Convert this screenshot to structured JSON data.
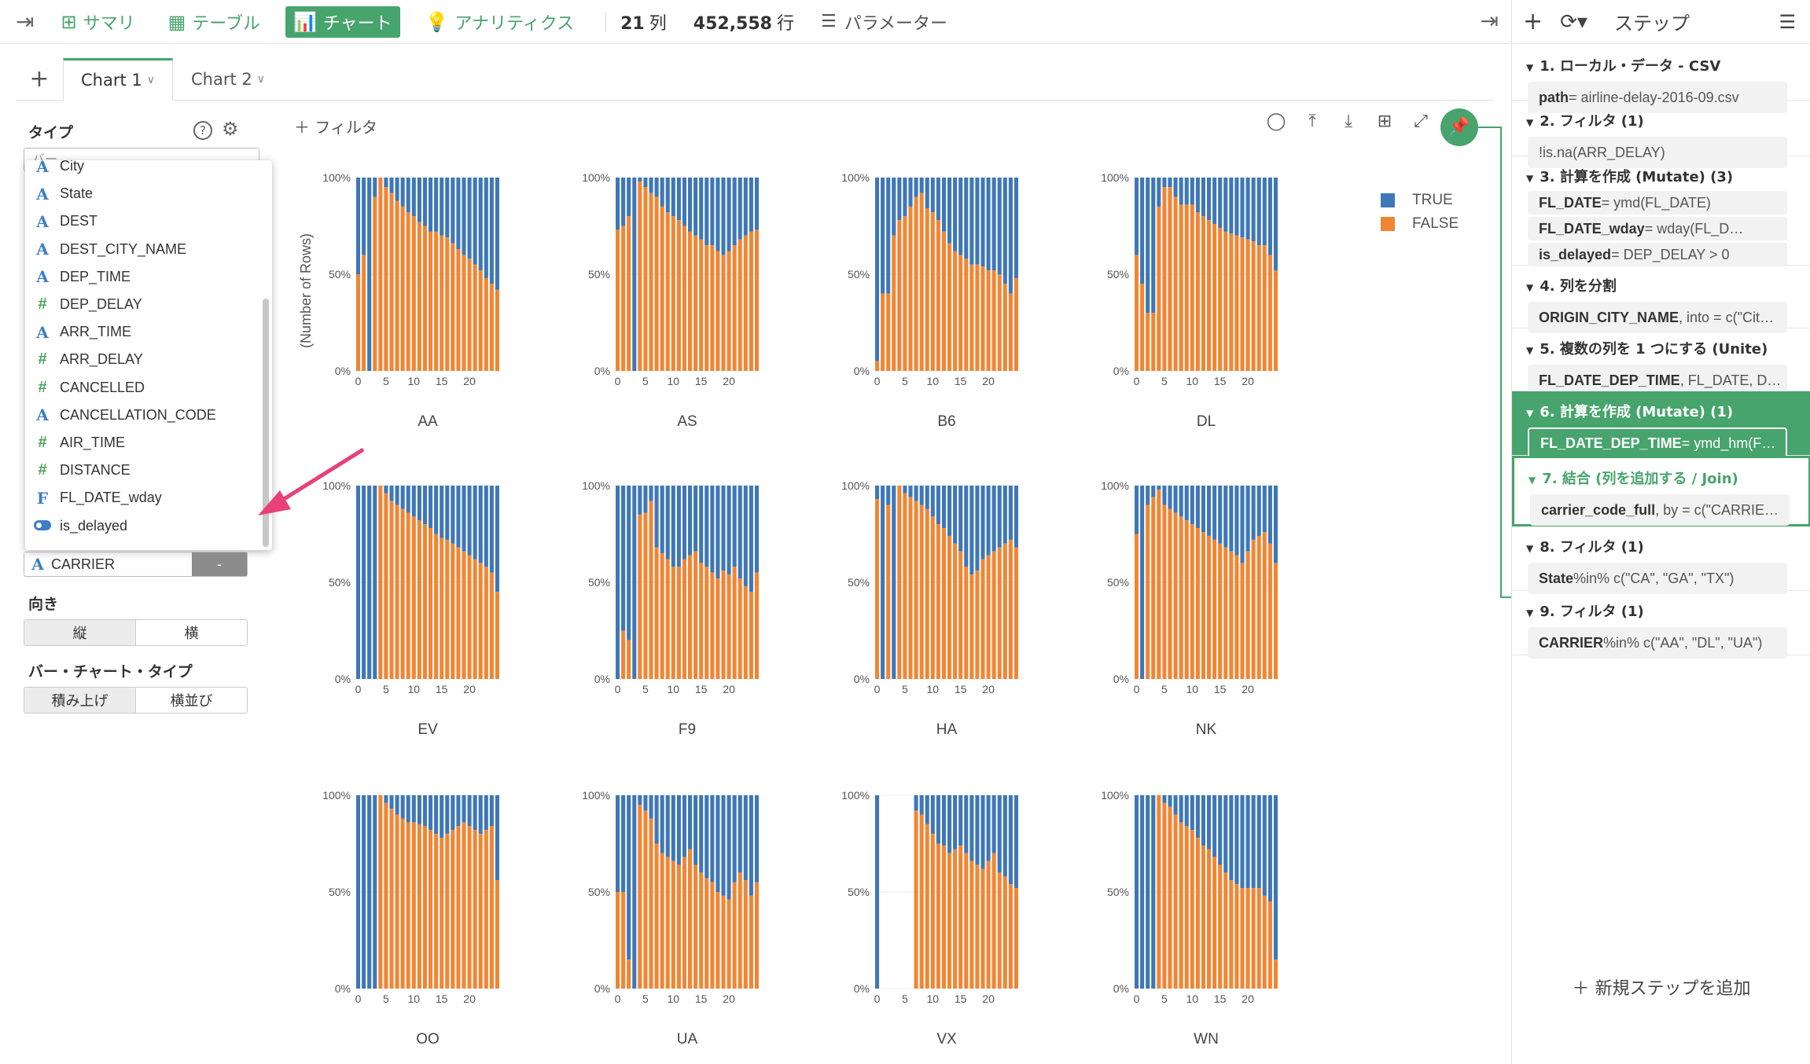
{
  "toolbar": {
    "summary": "サマリ",
    "table": "テーブル",
    "chart": "チャート",
    "analytics": "アナリティクス",
    "columns_count": "21",
    "columns_unit": "列",
    "rows_count": "452,558",
    "rows_unit": "行",
    "parameter": "パラメーター"
  },
  "tabs": [
    "Chart 1",
    "Chart 2"
  ],
  "left_panel": {
    "type_label": "タイプ",
    "type_value": "バー",
    "dropdown_items": [
      {
        "icon": "A",
        "kind": "str",
        "label": "City"
      },
      {
        "icon": "A",
        "kind": "str",
        "label": "State"
      },
      {
        "icon": "A",
        "kind": "str",
        "label": "DEST"
      },
      {
        "icon": "A",
        "kind": "str",
        "label": "DEST_CITY_NAME"
      },
      {
        "icon": "A",
        "kind": "str",
        "label": "DEP_TIME"
      },
      {
        "icon": "#",
        "kind": "num",
        "label": "DEP_DELAY"
      },
      {
        "icon": "A",
        "kind": "str",
        "label": "ARR_TIME"
      },
      {
        "icon": "#",
        "kind": "num",
        "label": "ARR_DELAY"
      },
      {
        "icon": "#",
        "kind": "num",
        "label": "CANCELLED"
      },
      {
        "icon": "A",
        "kind": "str",
        "label": "CANCELLATION_CODE"
      },
      {
        "icon": "#",
        "kind": "num",
        "label": "AIR_TIME"
      },
      {
        "icon": "#",
        "kind": "num",
        "label": "DISTANCE"
      },
      {
        "icon": "F",
        "kind": "fac",
        "label": "FL_DATE_wday"
      },
      {
        "icon": "toggle",
        "kind": "lgl",
        "label": "is_delayed"
      }
    ],
    "carrier_icon": "A",
    "carrier_field": "CARRIER",
    "carrier_minus": "-",
    "orientation_label": "向き",
    "orientation_options": [
      "縦",
      "横"
    ],
    "bar_type_label": "バー・チャート・タイプ",
    "bar_type_options": [
      "積み上げ",
      "横並び"
    ]
  },
  "chart_area": {
    "filter_label": "フィルタ"
  },
  "chart_data": {
    "type": "bar",
    "stacked": true,
    "ylabel": "(Number of Rows)",
    "yticks": [
      "0%",
      "50%",
      "100%"
    ],
    "xticks": [
      0,
      5,
      10,
      15,
      20
    ],
    "legend": [
      {
        "name": "TRUE",
        "color": "#3e77b6"
      },
      {
        "name": "FALSE",
        "color": "#f08634"
      }
    ],
    "legend_position": "right",
    "facets": [
      {
        "name": "AA",
        "false_pct": [
          50,
          60,
          0,
          90,
          100,
          95,
          92,
          88,
          85,
          82,
          80,
          77,
          75,
          72,
          72,
          70,
          69,
          66,
          63,
          60,
          58,
          55,
          52,
          48,
          45,
          42
        ]
      },
      {
        "name": "AS",
        "false_pct": [
          73,
          75,
          80,
          0,
          98,
          95,
          92,
          90,
          85,
          82,
          80,
          78,
          75,
          72,
          70,
          68,
          65,
          65,
          62,
          60,
          62,
          65,
          68,
          70,
          72,
          73
        ]
      },
      {
        "name": "B6",
        "false_pct": [
          5,
          40,
          40,
          70,
          78,
          80,
          85,
          90,
          92,
          84,
          82,
          78,
          72,
          66,
          62,
          60,
          58,
          55,
          55,
          54,
          52,
          52,
          50,
          45,
          40,
          48
        ]
      },
      {
        "name": "DL",
        "false_pct": [
          60,
          45,
          30,
          30,
          85,
          95,
          95,
          90,
          86,
          86,
          86,
          82,
          80,
          78,
          76,
          74,
          72,
          71,
          70,
          69,
          68,
          67,
          65,
          65,
          60,
          52
        ]
      },
      {
        "name": "EV",
        "false_pct": [
          0,
          0,
          0,
          0,
          100,
          96,
          92,
          90,
          88,
          86,
          84,
          82,
          80,
          78,
          75,
          73,
          72,
          70,
          68,
          66,
          64,
          62,
          60,
          58,
          55,
          45
        ]
      },
      {
        "name": "F9",
        "false_pct": [
          0,
          25,
          20,
          0,
          85,
          86,
          92,
          68,
          65,
          62,
          58,
          58,
          62,
          64,
          66,
          60,
          58,
          55,
          52,
          56,
          54,
          58,
          52,
          48,
          45,
          55
        ]
      },
      {
        "name": "HA",
        "false_pct": [
          93,
          0,
          90,
          0,
          100,
          96,
          94,
          92,
          90,
          88,
          84,
          80,
          78,
          74,
          70,
          66,
          58,
          54,
          56,
          62,
          64,
          66,
          68,
          70,
          72,
          68
        ]
      },
      {
        "name": "NK",
        "false_pct": [
          75,
          0,
          90,
          94,
          98,
          90,
          88,
          86,
          84,
          82,
          80,
          78,
          76,
          74,
          72,
          70,
          68,
          66,
          64,
          60,
          66,
          72,
          74,
          76,
          70,
          60
        ]
      },
      {
        "name": "OO",
        "false_pct": [
          0,
          0,
          0,
          0,
          100,
          96,
          93,
          90,
          88,
          86,
          86,
          85,
          84,
          82,
          80,
          78,
          80,
          82,
          84,
          86,
          84,
          82,
          80,
          82,
          84,
          56
        ]
      },
      {
        "name": "UA",
        "false_pct": [
          50,
          50,
          15,
          0,
          95,
          92,
          88,
          75,
          70,
          68,
          66,
          64,
          68,
          72,
          64,
          60,
          57,
          55,
          50,
          48,
          46,
          55,
          60,
          56,
          48,
          55
        ]
      },
      {
        "name": "VX",
        "false_pct": [
          0,
          0,
          0,
          0,
          0,
          0,
          0,
          92,
          90,
          85,
          80,
          75,
          74,
          70,
          72,
          74,
          70,
          66,
          64,
          62,
          66,
          70,
          60,
          58,
          54,
          52
        ]
      },
      {
        "name": "WN",
        "false_pct": [
          0,
          0,
          0,
          0,
          100,
          96,
          94,
          90,
          86,
          84,
          82,
          78,
          74,
          72,
          68,
          64,
          60,
          56,
          54,
          52,
          52,
          52,
          52,
          48,
          45,
          15
        ]
      }
    ]
  },
  "right_panel": {
    "title": "ステップ",
    "add_step": "新規ステップを追加",
    "steps": [
      {
        "title": "1. ローカル・データ - CSV",
        "body_key": "path",
        "body_rest": " = airline-delay-2016-09.csv"
      },
      {
        "title": "2. フィルタ (1)",
        "body_key": "",
        "body_rest": "!is.na(ARR_DELAY)"
      },
      {
        "title": "3. 計算を作成 (Mutate) (3)",
        "body_key": "FL_DATE",
        "body_rest": " = ymd(FL_DATE)",
        "body2_key": "FL_DATE_wday",
        "body2_rest": " = wday(FL_D…",
        "body3_key": "is_delayed",
        "body3_rest": " = DEP_DELAY > 0"
      },
      {
        "title": "4. 列を分割",
        "body_key": "ORIGIN_CITY_NAME",
        "body_rest": ", into = c(\"Cit…"
      },
      {
        "title": "5. 複数の列を 1 つにする (Unite)",
        "body_key": "FL_DATE_DEP_TIME",
        "body_rest": ", FL_DATE, D…"
      },
      {
        "title": "6. 計算を作成 (Mutate) (1)",
        "body_key": "FL_DATE_DEP_TIME",
        "body_rest": " = ymd_hm(F…"
      },
      {
        "title": "7. 結合 (列を追加する / Join)",
        "body_key": "carrier_code_full",
        "body_rest": ", by = c(\"CARRIE…"
      },
      {
        "title": "8. フィルタ (1)",
        "body_key": "State",
        "body_rest": " %in% c(\"CA\", \"GA\", \"TX\")"
      },
      {
        "title": "9. フィルタ (1)",
        "body_key": "CARRIER",
        "body_rest": " %in% c(\"AA\", \"DL\", \"UA\")"
      }
    ]
  }
}
